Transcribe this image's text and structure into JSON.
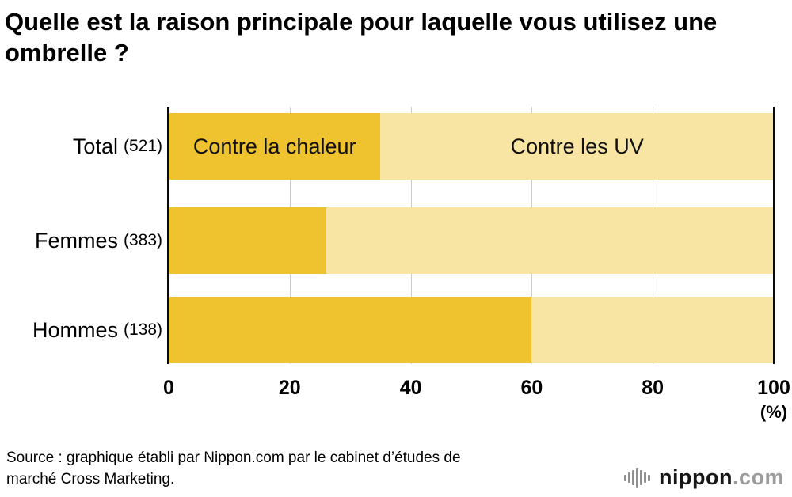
{
  "chart_data": {
    "type": "bar",
    "stacked": true,
    "orientation": "horizontal",
    "title": "Quelle est la raison principale pour laquelle vous utilisez une ombrelle ?",
    "categories": [
      "Total",
      "Femmes",
      "Hommes"
    ],
    "counts": [
      521,
      383,
      138
    ],
    "count_labels": [
      "(521)",
      "(383)",
      "(138)"
    ],
    "series": [
      {
        "name": "Contre la chaleur",
        "color": "#EFC230",
        "values": [
          35,
          26,
          60
        ]
      },
      {
        "name": "Contre les UV",
        "color": "#F8E5A3",
        "values": [
          65,
          74,
          40
        ]
      }
    ],
    "xlabel": "",
    "ylabel": "",
    "xlim": [
      0,
      100
    ],
    "x_ticks": [
      0,
      20,
      40,
      60,
      80,
      100
    ],
    "x_unit": "(%)",
    "grid": true,
    "legend": "labels-inside-first-bar"
  },
  "source": {
    "text": "Source : graphique établi par Nippon.com par le cabinet d’études de marché Cross Marketing."
  },
  "logo": {
    "name": "nippon",
    "tld": ".com"
  }
}
